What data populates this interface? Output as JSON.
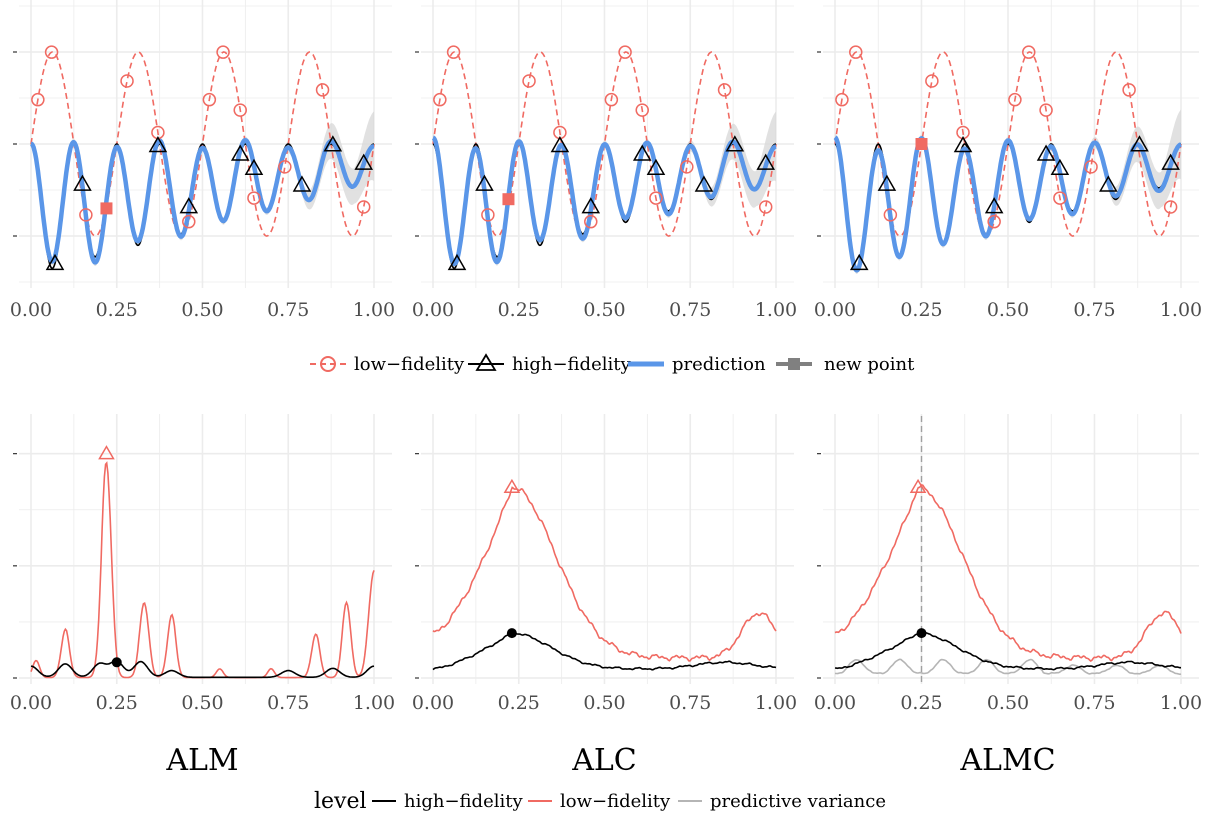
{
  "chart_data": [
    {
      "type": "line",
      "panel": "top-1",
      "x_ticks": [
        "0.00",
        "0.25",
        "0.50",
        "0.75",
        "1.00"
      ],
      "xlim": [
        0,
        1
      ],
      "ylim": [
        -1.5,
        1.5
      ],
      "new_point": {
        "x": 0.22,
        "y": -0.7
      }
    },
    {
      "type": "line",
      "panel": "top-2",
      "x_ticks": [
        "0.00",
        "0.25",
        "0.50",
        "0.75",
        "1.00"
      ],
      "xlim": [
        0,
        1
      ],
      "ylim": [
        -1.5,
        1.5
      ],
      "new_point": {
        "x": 0.22,
        "y": -0.6
      }
    },
    {
      "type": "line",
      "panel": "top-3",
      "x_ticks": [
        "0.00",
        "0.25",
        "0.50",
        "0.75",
        "1.00"
      ],
      "xlim": [
        0,
        1
      ],
      "ylim": [
        -1.5,
        1.5
      ],
      "new_point": {
        "x": 0.25,
        "y": 0.0
      }
    },
    {
      "type": "line",
      "panel": "bottom-1",
      "title": "ALM",
      "x_ticks": [
        "0.00",
        "0.25",
        "0.50",
        "0.75",
        "1.00"
      ],
      "xlim": [
        0,
        1
      ],
      "ylim": [
        0,
        1.15
      ],
      "low_fidelity_max": {
        "x": 0.22,
        "y": 1.0
      },
      "high_fidelity_max": {
        "x": 0.25,
        "y": 0.07
      },
      "show_variance": false
    },
    {
      "type": "line",
      "panel": "bottom-2",
      "title": "ALC",
      "x_ticks": [
        "0.00",
        "0.25",
        "0.50",
        "0.75",
        "1.00"
      ],
      "xlim": [
        0,
        1
      ],
      "ylim": [
        0,
        1.15
      ],
      "low_fidelity_max": {
        "x": 0.23,
        "y": 0.85
      },
      "high_fidelity_max": {
        "x": 0.23,
        "y": 0.2
      },
      "show_variance": false
    },
    {
      "type": "line",
      "panel": "bottom-3",
      "title": "ALMC",
      "x_ticks": [
        "0.00",
        "0.25",
        "0.50",
        "0.75",
        "1.00"
      ],
      "xlim": [
        0,
        1
      ],
      "ylim": [
        0,
        1.15
      ],
      "low_fidelity_max": {
        "x": 0.24,
        "y": 0.85
      },
      "high_fidelity_max": {
        "x": 0.25,
        "y": 0.2
      },
      "show_variance": true,
      "vline_x": 0.25
    }
  ],
  "legend_top": {
    "items": [
      "low−fidelity",
      "high−fidelity",
      "prediction",
      "new point"
    ]
  },
  "legend_bottom": {
    "title": "level",
    "items": [
      "high−fidelity",
      "low−fidelity",
      "predictive variance"
    ]
  },
  "colors": {
    "low_fidelity": "#f06a62",
    "high_fidelity": "#000000",
    "prediction": "#5a96e8",
    "band": "#d7d7d7",
    "variance": "#b5b5b5",
    "grid": "#ececec"
  }
}
